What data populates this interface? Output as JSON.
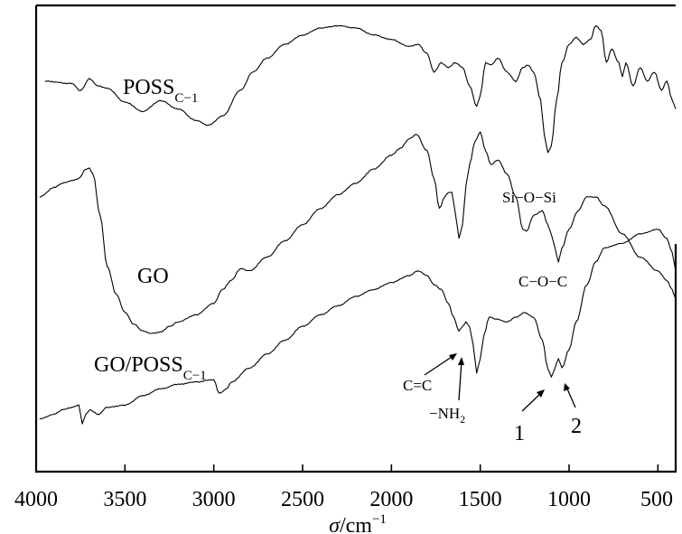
{
  "chart_data": {
    "type": "line",
    "title": "",
    "xlabel_main": "σ",
    "xlabel_unit": "/cm",
    "xlabel_sup": "−1",
    "ylabel": "",
    "xlim": [
      4000,
      400
    ],
    "ylim": [
      0,
      100
    ],
    "grid": false,
    "x_ticks": [
      "4000",
      "3500",
      "3000",
      "2500",
      "2000",
      "1500",
      "1000",
      "500"
    ],
    "x_tick_values": [
      4000,
      3500,
      3000,
      2500,
      2000,
      1500,
      1000,
      500
    ],
    "series": [
      {
        "name_main": "POSS",
        "name_sub": "C−1",
        "x": [
          3950,
          3800,
          3750,
          3700,
          3650,
          3600,
          3500,
          3400,
          3300,
          3200,
          3100,
          3030,
          2950,
          2850,
          2780,
          2700,
          2600,
          2500,
          2400,
          2300,
          2200,
          2100,
          2000,
          1900,
          1850,
          1800,
          1760,
          1720,
          1680,
          1640,
          1600,
          1560,
          1520,
          1500,
          1470,
          1440,
          1400,
          1350,
          1300,
          1260,
          1230,
          1200,
          1160,
          1140,
          1120,
          1100,
          1070,
          1040,
          1000,
          960,
          920,
          880,
          850,
          820,
          790,
          760,
          720,
          700,
          680,
          640,
          600,
          560,
          520,
          480,
          450,
          420,
          400
        ],
        "y": [
          84,
          83.5,
          82,
          84.5,
          83,
          82.5,
          79.5,
          77.5,
          79.8,
          78,
          75.5,
          74.5,
          76.5,
          82,
          86,
          89,
          92,
          94,
          95.5,
          96,
          95.5,
          94,
          93,
          91.5,
          92,
          90,
          86,
          88,
          87,
          88,
          87,
          83,
          78.5,
          81,
          88,
          87.5,
          89,
          86,
          84,
          87,
          87.5,
          86,
          80,
          72.5,
          68.5,
          70,
          80,
          88,
          92,
          93.5,
          92,
          93,
          96,
          95,
          88,
          91,
          88,
          85,
          88,
          83,
          87,
          84,
          86,
          82,
          84,
          80,
          78
        ]
      },
      {
        "name_main": "GO",
        "name_sub": "",
        "x": [
          3980,
          3900,
          3850,
          3800,
          3760,
          3720,
          3700,
          3680,
          3640,
          3600,
          3550,
          3500,
          3450,
          3400,
          3350,
          3300,
          3250,
          3200,
          3100,
          3000,
          2950,
          2900,
          2850,
          2800,
          2700,
          2600,
          2500,
          2400,
          2300,
          2200,
          2100,
          2000,
          1950,
          1900,
          1860,
          1800,
          1760,
          1730,
          1700,
          1680,
          1660,
          1640,
          1620,
          1600,
          1580,
          1560,
          1530,
          1500,
          1470,
          1440,
          1400,
          1350,
          1300,
          1260,
          1240,
          1200,
          1150,
          1120,
          1100,
          1080,
          1060,
          1040,
          1000,
          950,
          900,
          850,
          800,
          700,
          600,
          500,
          450,
          420,
          400
        ],
        "y": [
          59,
          61,
          62,
          62.5,
          63,
          65,
          65.2,
          64,
          55,
          44,
          38,
          34,
          31.5,
          30,
          29.5,
          29.8,
          31,
          32,
          33.5,
          36,
          39,
          41,
          43.5,
          43,
          46,
          49.5,
          53,
          56.5,
          59.5,
          62,
          65,
          68,
          69.5,
          71.5,
          72.5,
          69,
          63,
          56.5,
          59,
          60,
          60,
          55.5,
          50,
          53,
          61.5,
          66,
          71,
          73,
          69,
          66,
          67,
          64,
          59,
          52,
          51.5,
          55,
          56,
          53,
          51,
          48,
          45,
          48,
          52,
          56,
          59,
          59,
          57,
          51,
          46,
          43,
          41,
          39,
          37
        ]
      },
      {
        "name_main": "GO/POSS",
        "name_sub": "C−1",
        "x": [
          3980,
          3900,
          3850,
          3800,
          3760,
          3740,
          3720,
          3700,
          3650,
          3600,
          3500,
          3400,
          3300,
          3200,
          3100,
          3000,
          2970,
          2950,
          2930,
          2900,
          2800,
          2700,
          2600,
          2500,
          2400,
          2300,
          2200,
          2100,
          2000,
          1900,
          1850,
          1800,
          1760,
          1720,
          1680,
          1650,
          1620,
          1600,
          1580,
          1560,
          1540,
          1520,
          1500,
          1480,
          1450,
          1400,
          1350,
          1300,
          1250,
          1200,
          1150,
          1120,
          1100,
          1080,
          1060,
          1040,
          1000,
          960,
          900,
          850,
          800,
          700,
          600,
          500,
          450,
          420,
          400
        ],
        "y": [
          11,
          12,
          13,
          13.5,
          14,
          10,
          12,
          13,
          12,
          13.5,
          14,
          16,
          17.5,
          18.5,
          19,
          19.5,
          16.5,
          17,
          17.5,
          19,
          22,
          25,
          28,
          31,
          33.5,
          35.5,
          37.5,
          39,
          40.5,
          42,
          43,
          42,
          40,
          39,
          36,
          33,
          30,
          31,
          32,
          31,
          27,
          21,
          24,
          29,
          33,
          32.5,
          32,
          33,
          34,
          33,
          28,
          22,
          20,
          22,
          24,
          22,
          26,
          32,
          40,
          45,
          48,
          49,
          51,
          52,
          50,
          47,
          43
        ]
      }
    ],
    "annotations": {
      "sio_si": "Si−O−Si",
      "coc": "C−O−C",
      "cc": "C=C",
      "nh2_main": "−NH",
      "nh2_sub": "2",
      "peak1": "1",
      "peak2": "2"
    }
  }
}
